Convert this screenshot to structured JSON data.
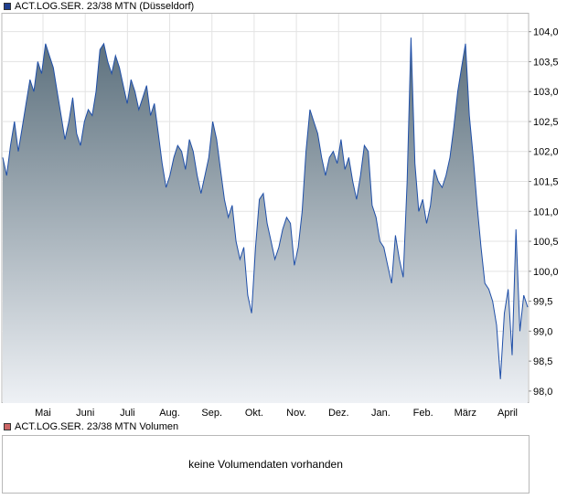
{
  "legend": {
    "price_label": "ACT.LOG.SER. 23/38 MTN (Düsseldorf)",
    "price_color": "#1f3f8f",
    "volume_label": "ACT.LOG.SER. 23/38 MTN Volumen",
    "volume_color": "#cc6666"
  },
  "volume": {
    "message": "keine Volumendaten vorhanden"
  },
  "chart_data": {
    "type": "area",
    "series": [
      {
        "values": [
          101.9,
          101.6,
          102.1,
          102.5,
          102.0,
          102.4,
          102.8,
          103.2,
          103.0,
          103.5,
          103.3,
          103.8,
          103.6,
          103.4,
          103.0,
          102.6,
          102.2,
          102.5,
          102.9,
          102.3,
          102.1,
          102.5,
          102.7,
          102.6,
          103.0,
          103.7,
          103.8,
          103.5,
          103.3,
          103.6,
          103.4,
          103.1,
          102.8,
          103.2,
          103.0,
          102.7,
          102.9,
          103.1,
          102.6,
          102.8,
          102.3,
          101.8,
          101.4,
          101.6,
          101.9,
          102.1,
          102.0,
          101.7,
          102.2,
          102.0,
          101.6,
          101.3,
          101.6,
          101.9,
          102.5,
          102.2,
          101.7,
          101.2,
          100.9,
          101.1,
          100.5,
          100.2,
          100.4,
          99.6,
          99.3,
          100.4,
          101.2,
          101.3,
          100.8,
          100.5,
          100.2,
          100.4,
          100.7,
          100.9,
          100.8,
          100.1,
          100.4,
          101.0,
          102.0,
          102.7,
          102.5,
          102.3,
          101.9,
          101.6,
          101.9,
          102.0,
          101.8,
          102.2,
          101.7,
          101.9,
          101.5,
          101.2,
          101.6,
          102.1,
          102.0,
          101.1,
          100.9,
          100.5,
          100.4,
          100.1,
          99.8,
          100.6,
          100.2,
          99.9,
          101.5,
          103.9,
          101.8,
          101.0,
          101.2,
          100.8,
          101.1,
          101.7,
          101.5,
          101.4,
          101.6,
          101.9,
          102.4,
          103.0,
          103.4,
          103.8,
          102.6,
          101.9,
          101.1,
          100.4,
          99.8,
          99.7,
          99.5,
          99.1,
          98.2,
          99.3,
          99.7,
          98.6,
          100.7,
          99.0,
          99.6,
          99.4
        ],
        "color": "#1f4fa8"
      }
    ],
    "x_ticks": [
      "Mai",
      "Juni",
      "Juli",
      "Aug.",
      "Sep.",
      "Okt.",
      "Nov.",
      "Dez.",
      "Jan.",
      "Feb.",
      "März",
      "April"
    ],
    "y_ticks": [
      "104,0",
      "103,5",
      "103,0",
      "102,5",
      "102,0",
      "101,5",
      "101,0",
      "100,5",
      "100,0",
      "99,5",
      "99,0",
      "98,5",
      "98,0"
    ],
    "y_tick_values": [
      104.0,
      103.5,
      103.0,
      102.5,
      102.0,
      101.5,
      101.0,
      100.5,
      100.0,
      99.5,
      99.0,
      98.5,
      98.0
    ],
    "ylim": [
      97.8,
      104.3
    ],
    "grid": true,
    "fill_gradient": [
      "#5b6f7c",
      "#eef1f5"
    ]
  }
}
